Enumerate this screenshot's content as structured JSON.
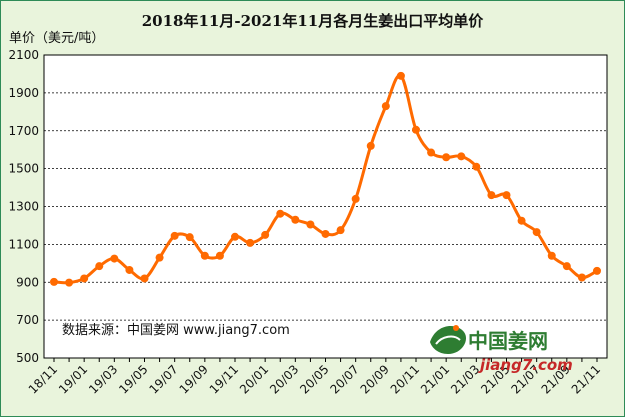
{
  "chart_data": {
    "type": "line",
    "title": "2018年11月-2021年11月各月生姜出口平均单价",
    "ylabel": "单价（美元/吨）",
    "xlabel": "",
    "ylim": [
      500,
      2100
    ],
    "yticks": [
      500,
      700,
      900,
      1100,
      1300,
      1500,
      1700,
      1900,
      2100
    ],
    "grid": "horizontal-dashed",
    "x": [
      "18/11",
      "18/12",
      "19/01",
      "19/02",
      "19/03",
      "19/04",
      "19/05",
      "19/06",
      "19/07",
      "19/08",
      "19/09",
      "19/10",
      "19/11",
      "19/12",
      "20/01",
      "20/02",
      "20/03",
      "20/04",
      "20/05",
      "20/06",
      "20/07",
      "20/08",
      "20/09",
      "20/10",
      "20/11",
      "20/12",
      "21/01",
      "21/02",
      "21/03",
      "21/04",
      "21/05",
      "21/06",
      "21/07",
      "21/08",
      "21/09",
      "21/10",
      "21/11"
    ],
    "xtick_labels": [
      "18/11",
      "19/01",
      "19/03",
      "19/05",
      "19/07",
      "19/09",
      "19/11",
      "20/01",
      "20/03",
      "20/05",
      "20/07",
      "20/09",
      "20/11",
      "21/01",
      "21/03",
      "21/05",
      "21/07",
      "21/09",
      "21/11"
    ],
    "series": [
      {
        "values": [
          902,
          898,
          920,
          985,
          1025,
          965,
          920,
          1030,
          1145,
          1138,
          1040,
          1040,
          1140,
          1108,
          1150,
          1262,
          1230,
          1205,
          1155,
          1175,
          1340,
          1620,
          1830,
          1990,
          1705,
          1585,
          1560,
          1565,
          1510,
          1360,
          1360,
          1225,
          1165,
          1040,
          985,
          925,
          960
        ]
      }
    ],
    "colors": {
      "line": "#ff6a00",
      "background": "#ffffff",
      "frame_bg": "#e9f4dc",
      "grid": "#000000"
    }
  },
  "watermark": {
    "source_text": "数据来源：中国姜网 www.jiang7.com"
  },
  "logo": {
    "name_text": "中国姜网",
    "url_text": "jiang7.com"
  }
}
